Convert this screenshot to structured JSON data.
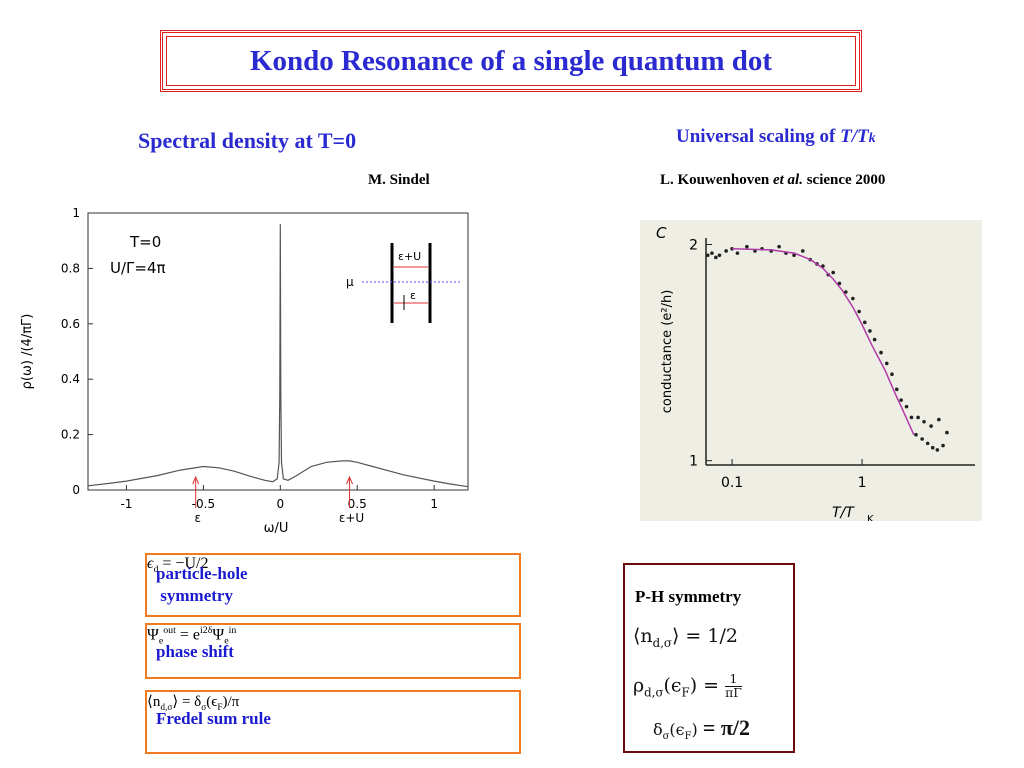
{
  "header": {
    "title": "Kondo Resonance of a single quantum dot"
  },
  "left": {
    "heading": "Spectral density at T=0",
    "credit": "M. Sindel"
  },
  "right": {
    "heading": "Universal scaling of ",
    "heading_italic": "T/T",
    "heading_sub": "k",
    "credit_pre": "L. Kouwenhoven ",
    "credit_italic": "et al.",
    "credit_post": " science 2000"
  },
  "chart_data": [
    {
      "type": "line",
      "xlabel": "ω/U",
      "ylabel": "ρ(ω) /(4/πΓ)",
      "annotations": {
        "t": "T=0",
        "ratio": "U/Γ=4π",
        "eu_top": "ε+U",
        "mu": "μ",
        "eps_top": "ε",
        "eps_axis": "ε",
        "eu_axis": "ε+U"
      },
      "x": [
        -1.25,
        -1.1,
        -1.0,
        -0.8,
        -0.65,
        -0.5,
        -0.4,
        -0.3,
        -0.2,
        -0.1,
        -0.05,
        -0.02,
        -0.008,
        -0.003,
        0,
        0.003,
        0.008,
        0.02,
        0.05,
        0.1,
        0.2,
        0.3,
        0.4,
        0.45,
        0.5,
        0.6,
        0.8,
        1.0,
        1.1,
        1.22
      ],
      "series": [
        {
          "color": "#555555",
          "values": [
            0.015,
            0.025,
            0.032,
            0.052,
            0.072,
            0.085,
            0.08,
            0.068,
            0.05,
            0.035,
            0.03,
            0.04,
            0.1,
            0.35,
            0.96,
            0.35,
            0.1,
            0.04,
            0.035,
            0.05,
            0.085,
            0.1,
            0.105,
            0.105,
            0.1,
            0.085,
            0.055,
            0.032,
            0.022,
            0.012
          ]
        }
      ],
      "xlim": [
        -1.25,
        1.22
      ],
      "ylim": [
        0,
        1
      ],
      "xticks": [
        -1,
        -0.5,
        0,
        0.5,
        1
      ],
      "yticks": [
        0,
        0.2,
        0.4,
        0.6,
        0.8,
        1
      ]
    },
    {
      "type": "scatter",
      "corner_label": "C",
      "xlabel": "T/T",
      "xlabel_sub": "K",
      "ylabel": "conductance (e²/h)",
      "xlog": true,
      "xlim": [
        0.063,
        7.4
      ],
      "ylim": [
        0.98,
        2.03
      ],
      "xticks": [
        0.1,
        1
      ],
      "yticks": [
        1,
        2
      ],
      "series": [
        {
          "color": "#222222",
          "x": [
            0.065,
            0.07,
            0.075,
            0.08,
            0.09,
            0.1,
            0.11,
            0.13,
            0.15,
            0.17,
            0.2,
            0.23,
            0.26,
            0.3,
            0.35,
            0.4,
            0.45,
            0.5,
            0.55,
            0.6,
            0.67,
            0.75,
            0.85,
            0.95,
            1.05,
            1.15,
            1.25,
            1.4,
            1.55,
            1.7,
            1.85,
            2.0,
            2.2,
            2.4,
            2.6,
            2.9,
            3.2,
            3.5,
            3.8,
            4.2,
            2.7,
            3.0,
            3.4,
            3.9,
            4.5
          ],
          "values": [
            1.95,
            1.96,
            1.94,
            1.95,
            1.97,
            1.98,
            1.96,
            1.99,
            1.97,
            1.98,
            1.97,
            1.99,
            1.96,
            1.95,
            1.97,
            1.93,
            1.91,
            1.9,
            1.86,
            1.87,
            1.82,
            1.78,
            1.75,
            1.69,
            1.64,
            1.6,
            1.56,
            1.5,
            1.45,
            1.4,
            1.33,
            1.28,
            1.25,
            1.2,
            1.12,
            1.1,
            1.08,
            1.06,
            1.05,
            1.07,
            1.2,
            1.18,
            1.16,
            1.19,
            1.13
          ]
        },
        {
          "color": "#b03aa8",
          "x": [
            0.1,
            0.2,
            0.3,
            0.4,
            0.5,
            0.6,
            0.7,
            0.85,
            1,
            1.2,
            1.5,
            1.8,
            2,
            2.3,
            2.5
          ],
          "values": [
            1.98,
            1.975,
            1.96,
            1.93,
            1.89,
            1.84,
            1.79,
            1.71,
            1.63,
            1.53,
            1.42,
            1.31,
            1.25,
            1.17,
            1.12
          ]
        }
      ]
    }
  ],
  "boxes": [
    {
      "label": "particle-hole\n symmetry",
      "formula": [
        [
          "ϵ",
          "i"
        ],
        [
          "d",
          "sub"
        ],
        [
          " = −U/2",
          ""
        ]
      ]
    },
    {
      "label": "phase shift",
      "formula": [
        [
          "Ψ",
          ""
        ],
        [
          "e",
          "sub"
        ],
        [
          "out",
          "sup"
        ],
        [
          " = e",
          ""
        ],
        [
          "i2δ",
          "sup"
        ],
        [
          "Ψ",
          ""
        ],
        [
          "e",
          "sub"
        ],
        [
          "in",
          "sup"
        ]
      ]
    },
    {
      "label": "Fredel sum rule",
      "formula": [
        [
          "⟨n",
          ""
        ],
        [
          "d,σ",
          "sub"
        ],
        [
          "⟩ = δ",
          ""
        ],
        [
          "σ",
          "sub"
        ],
        [
          "(ϵ",
          ""
        ],
        [
          "F",
          "sub"
        ],
        [
          ")/π",
          ""
        ]
      ]
    }
  ],
  "ph_box": {
    "title": "P-H symmetry",
    "lines": [
      [
        [
          "⟨n",
          ""
        ],
        [
          "d,σ",
          "sub"
        ],
        [
          "⟩ = 1/2",
          ""
        ]
      ],
      [
        [
          "ρ",
          ""
        ],
        [
          "d,σ",
          "sub"
        ],
        [
          "(ϵ",
          ""
        ],
        [
          "F",
          "sub"
        ],
        [
          ") = ",
          ""
        ],
        [
          "1",
          "num"
        ],
        [
          "πΓ",
          "den"
        ]
      ],
      [
        [
          "δ",
          ""
        ],
        [
          "σ",
          "sub"
        ],
        [
          "(ϵ",
          ""
        ],
        [
          "F",
          "sub"
        ],
        [
          ") ",
          ""
        ],
        [
          "= π/2",
          "big"
        ]
      ]
    ]
  }
}
